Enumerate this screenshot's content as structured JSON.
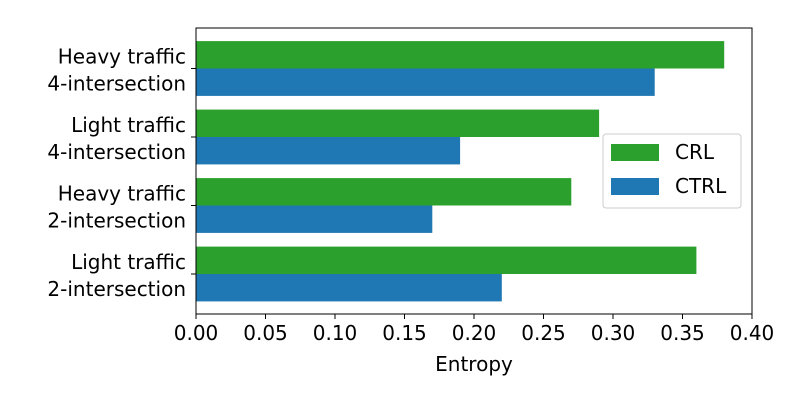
{
  "chart_data": {
    "type": "bar",
    "orientation": "horizontal",
    "categories": [
      [
        "Heavy traffic",
        "4-intersection"
      ],
      [
        "Light traffic",
        "4-intersection"
      ],
      [
        "Heavy traffic",
        "2-intersection"
      ],
      [
        "Light traffic",
        "2-intersection"
      ]
    ],
    "series": [
      {
        "name": "CRL",
        "color": "#2ca02c",
        "values": [
          0.38,
          0.29,
          0.27,
          0.36
        ]
      },
      {
        "name": "CTRL",
        "color": "#1f77b4",
        "values": [
          0.33,
          0.19,
          0.17,
          0.22
        ]
      }
    ],
    "xlabel": "Entropy",
    "ylabel": "",
    "xlim": [
      0,
      0.4
    ],
    "xticks": [
      "0.00",
      "0.05",
      "0.10",
      "0.15",
      "0.20",
      "0.25",
      "0.30",
      "0.35",
      "0.40"
    ],
    "grid": false,
    "legend": "center-right"
  }
}
